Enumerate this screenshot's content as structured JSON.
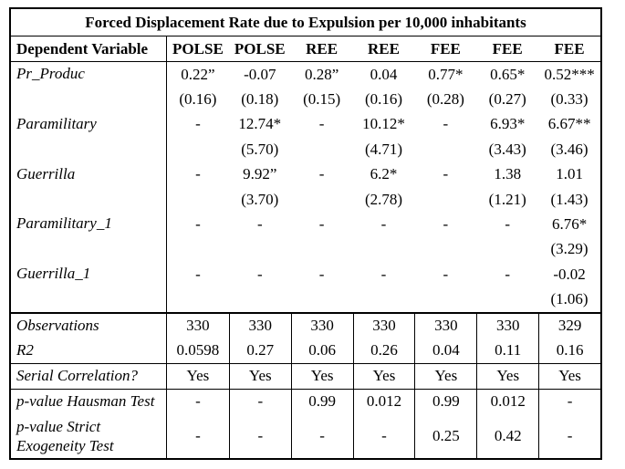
{
  "table": {
    "title": "Forced Displacement Rate due to Expulsion per 10,000 inhabitants",
    "header": {
      "label": "Dependent Variable",
      "columns": [
        "POLSE",
        "POLSE",
        "REE",
        "REE",
        "FEE",
        "FEE",
        "FEE"
      ]
    },
    "coefficient_rows": [
      {
        "label": "Pr_Produc",
        "coef": [
          "0.22”",
          "-0.07",
          "0.28”",
          "0.04",
          "0.77*",
          "0.65*",
          "0.52***"
        ],
        "se": [
          "(0.16)",
          "(0.18)",
          "(0.15)",
          "(0.16)",
          "(0.28)",
          "(0.27)",
          "(0.33)"
        ]
      },
      {
        "label": "Paramilitary",
        "coef": [
          "-",
          "12.74*",
          "-",
          "10.12*",
          "-",
          "6.93*",
          "6.67**"
        ],
        "se": [
          "",
          "(5.70)",
          "",
          "(4.71)",
          "",
          "(3.43)",
          "(3.46)"
        ]
      },
      {
        "label": "Guerrilla",
        "coef": [
          "-",
          "9.92”",
          "-",
          "6.2*",
          "-",
          "1.38",
          "1.01"
        ],
        "se": [
          "",
          "(3.70)",
          "",
          "(2.78)",
          "",
          "(1.21)",
          "(1.43)"
        ]
      },
      {
        "label": "Paramilitary_1",
        "coef": [
          "-",
          "-",
          "-",
          "-",
          "-",
          "-",
          "6.76*"
        ],
        "se": [
          "",
          "",
          "",
          "",
          "",
          "",
          "(3.29)"
        ]
      },
      {
        "label": "Guerrilla_1",
        "coef": [
          "-",
          "-",
          "-",
          "-",
          "-",
          "-",
          "-0.02"
        ],
        "se": [
          "",
          "",
          "",
          "",
          "",
          "",
          "(1.06)"
        ]
      }
    ],
    "stats_rows": [
      {
        "label": "Observations",
        "values": [
          "330",
          "330",
          "330",
          "330",
          "330",
          "330",
          "329"
        ]
      },
      {
        "label": "R2",
        "values": [
          "0.0598",
          "0.27",
          "0.06",
          "0.26",
          "0.04",
          "0.11",
          "0.16"
        ]
      }
    ],
    "serial_row": {
      "label": "Serial Correlation?",
      "values": [
        "Yes",
        "Yes",
        "Yes",
        "Yes",
        "Yes",
        "Yes",
        "Yes"
      ]
    },
    "test_rows": [
      {
        "label": "p-value Hausman Test",
        "values": [
          "-",
          "-",
          "0.99",
          "0.012",
          "0.99",
          "0.012",
          "-"
        ]
      },
      {
        "label": "p-value Strict Exogeneity Test",
        "label_lines": [
          "p-value Strict",
          "Exogeneity Test"
        ],
        "values": [
          "-",
          "-",
          "-",
          "-",
          "0.25",
          "0.42",
          "-"
        ]
      }
    ]
  },
  "colors": {
    "border": "#000000",
    "background": "#ffffff",
    "text": "#000000"
  }
}
